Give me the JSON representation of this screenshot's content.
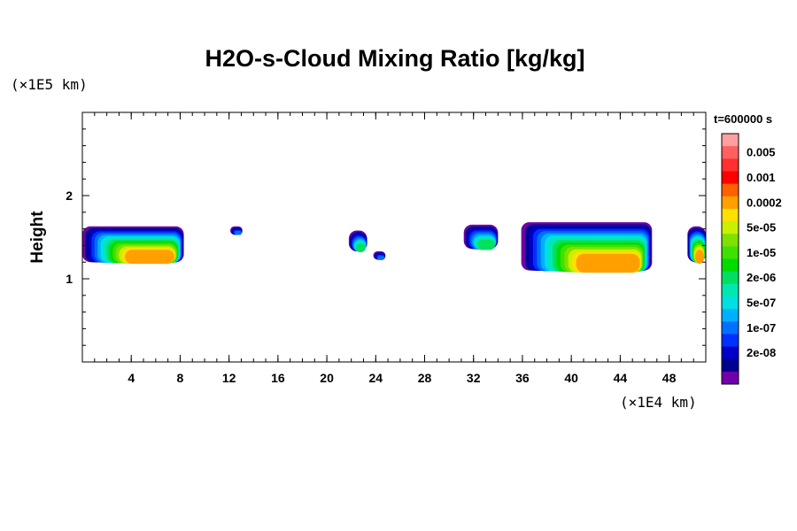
{
  "chart_data": {
    "type": "heatmap",
    "title": "H2O-s-Cloud Mixing Ratio [kg/kg]",
    "ylabel": "Height",
    "x_scale_label": "(×1E4 km)",
    "y_scale_label": "(×1E5 km)",
    "time_label": "t=600000 s",
    "xlim": [
      0,
      51
    ],
    "ylim": [
      0,
      3
    ],
    "x_ticks": [
      4,
      8,
      12,
      16,
      20,
      24,
      28,
      32,
      36,
      40,
      44,
      48
    ],
    "y_ticks": [
      1,
      2
    ],
    "x_minor_step": 1,
    "y_minor_step": 0.2,
    "colorbar": {
      "levels": [
        {
          "label": "",
          "color": "#ffa0a0"
        },
        {
          "label": "0.005",
          "color": "#ff6060"
        },
        {
          "label": "",
          "color": "#ff3030"
        },
        {
          "label": "0.001",
          "color": "#ff0000"
        },
        {
          "label": "",
          "color": "#ff6000"
        },
        {
          "label": "0.0002",
          "color": "#ffa000"
        },
        {
          "label": "",
          "color": "#ffe000"
        },
        {
          "label": "5e-05",
          "color": "#c8f000"
        },
        {
          "label": "",
          "color": "#80e000"
        },
        {
          "label": "1e-05",
          "color": "#40e000"
        },
        {
          "label": "",
          "color": "#00dc00"
        },
        {
          "label": "2e-06",
          "color": "#00e060"
        },
        {
          "label": "",
          "color": "#00e8b0"
        },
        {
          "label": "5e-07",
          "color": "#00e0e0"
        },
        {
          "label": "",
          "color": "#00b0ff"
        },
        {
          "label": "1e-07",
          "color": "#0070ff"
        },
        {
          "label": "",
          "color": "#0030ff"
        },
        {
          "label": "2e-08",
          "color": "#0000c8"
        },
        {
          "label": "",
          "color": "#000090"
        },
        {
          "label": "",
          "color": "#7000a8"
        }
      ]
    },
    "clouds": [
      {
        "x": [
          0,
          8.3
        ],
        "y": [
          1.2,
          1.63
        ]
      },
      {
        "x": [
          12.1,
          13.1
        ],
        "y": [
          1.53,
          1.63
        ]
      },
      {
        "x": [
          21.8,
          23.3
        ],
        "y": [
          1.33,
          1.58
        ]
      },
      {
        "x": [
          23.8,
          24.8
        ],
        "y": [
          1.23,
          1.33
        ]
      },
      {
        "x": [
          31.2,
          34.0
        ],
        "y": [
          1.36,
          1.65
        ]
      },
      {
        "x": [
          35.9,
          46.6
        ],
        "y": [
          1.1,
          1.68
        ]
      },
      {
        "x": [
          49.5,
          51
        ],
        "y": [
          1.2,
          1.63
        ]
      }
    ]
  }
}
